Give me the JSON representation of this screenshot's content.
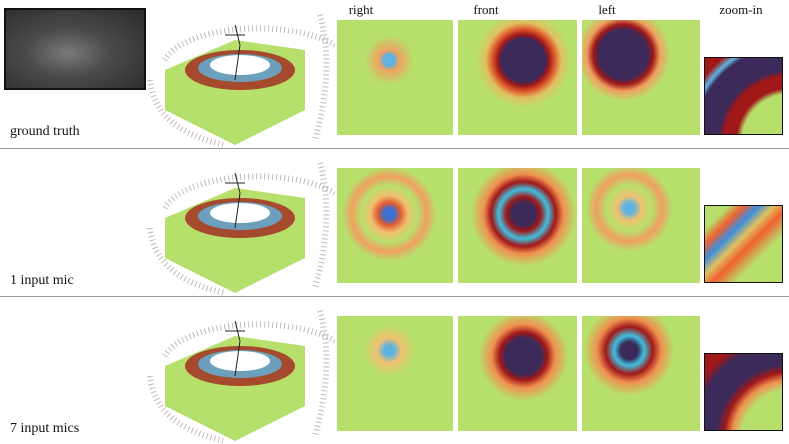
{
  "columns": [
    "right",
    "front",
    "left",
    "zoom-in"
  ],
  "rows": [
    {
      "label": "ground truth"
    },
    {
      "label": "1 input mic"
    },
    {
      "label": "7 input mics"
    }
  ]
}
